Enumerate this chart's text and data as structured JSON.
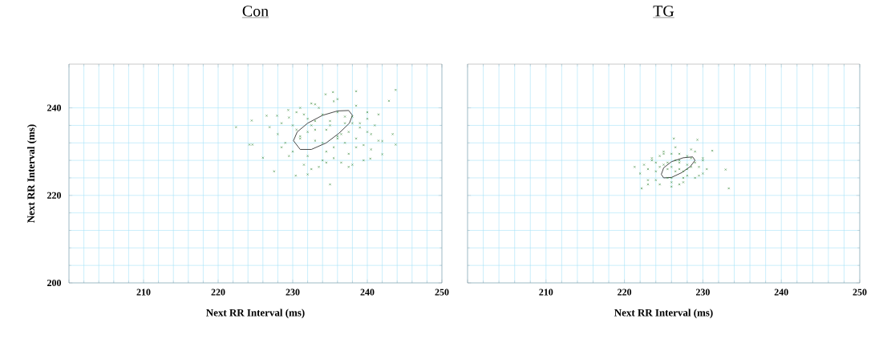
{
  "chart_data": [
    {
      "type": "scatter",
      "title": "Con",
      "xlabel": "Next RR Interval (ms)",
      "ylabel": "Next RR Interval (ms)",
      "xlim": [
        200,
        250
      ],
      "ylim": [
        200,
        250
      ],
      "xticks": [
        {
          "value": 200,
          "label": null
        },
        210,
        220,
        230,
        240,
        250
      ],
      "yticks": [
        200,
        220,
        240
      ],
      "grid": true,
      "marker": "cross",
      "series": [
        {
          "type": "scatter",
          "color": "#3c8c3c",
          "x": [
            222.4,
            224.5,
            226,
            227.5,
            230.4,
            232,
            235,
            243.8,
            242.9,
            243.8,
            243.4,
            238.5,
            235.4,
            234.4,
            240.4,
            242,
            242,
            233,
            229.4,
            227.9,
            226.5,
            224.2,
            224.6,
            226.9,
            228,
            228.5,
            229,
            229.5,
            230,
            230.5,
            231,
            231.5,
            232,
            232.5,
            233,
            233.5,
            234,
            234.5,
            235,
            235.5,
            236,
            236.5,
            237,
            237.5,
            238,
            238.5,
            239,
            239.5,
            240,
            240.5,
            241,
            241.5,
            228.5,
            229.5,
            230.5,
            231.5,
            232.5,
            233.5,
            234.5,
            235.5,
            236.5,
            237.5,
            238.5,
            239.5,
            240.5,
            241.5,
            230,
            231,
            232,
            233,
            234,
            235,
            236,
            237,
            238,
            239,
            240,
            231,
            232.5,
            234,
            235.5,
            237,
            238.5,
            240,
            233,
            234.5,
            236,
            237.5,
            232,
            236,
            238
          ],
          "values": [
            235.6,
            237.1,
            228.6,
            225.5,
            224.5,
            224.8,
            222.5,
            244.1,
            241.6,
            231.6,
            234,
            243.8,
            243.6,
            243.1,
            228.4,
            229.4,
            232.4,
            240.8,
            239.5,
            238.2,
            238.2,
            231.6,
            231.6,
            235.6,
            234,
            236.5,
            232,
            237.8,
            230,
            235,
            233.5,
            238.5,
            229,
            236,
            232.5,
            240,
            228,
            235,
            237,
            231,
            239,
            234,
            236.5,
            229.5,
            238,
            233,
            235.5,
            231.5,
            237.5,
            234,
            236,
            232.5,
            231,
            229,
            239,
            227,
            241,
            226.5,
            230,
            241.5,
            227.5,
            234.5,
            240.5,
            228,
            230.5,
            238.5,
            236,
            233,
            234.5,
            237,
            232,
            236,
            233,
            238,
            236.5,
            236.5,
            234.5,
            240,
            226,
            238.5,
            228.5,
            232,
            231,
            239,
            235,
            227.5,
            242,
            226.5,
            237.5,
            233.5,
            227
          ]
        },
        {
          "type": "line",
          "marker": "none",
          "color": "#333333",
          "x": [
            230.1,
            230.6,
            232,
            234,
            236,
            237.5,
            238
          ],
          "values": [
            232.5,
            234.5,
            236.5,
            238.3,
            239.3,
            239.4,
            238.3
          ]
        },
        {
          "type": "line",
          "marker": "none",
          "color": "#333333",
          "x": [
            230.1,
            231,
            232.5,
            234.5,
            236.2,
            237.6,
            238
          ],
          "values": [
            232.5,
            230.5,
            230.5,
            232,
            234.2,
            236.5,
            238.3
          ]
        }
      ]
    },
    {
      "type": "scatter",
      "title": "TG",
      "xlabel": "Next RR Interval (ms)",
      "xlim": [
        200,
        250
      ],
      "ylim": [
        200,
        250
      ],
      "xticks": [
        {
          "value": 200,
          "label": null
        },
        210,
        220,
        230,
        240,
        250
      ],
      "yticks": [
        200,
        220,
        240
      ],
      "grid": true,
      "marker": "cross",
      "tick_labels": "x",
      "series": [
        {
          "type": "scatter",
          "color": "#3c8c3c",
          "x": [
            226.3,
            229.3,
            221.3,
            232.9,
            233.3,
            222.2,
            231.2,
            222,
            222.5,
            223,
            223.5,
            224,
            224.5,
            225,
            225.5,
            226,
            226.5,
            227,
            227.5,
            228,
            228.5,
            229,
            229.5,
            230,
            230.5,
            223,
            224,
            225,
            226,
            227,
            228,
            229,
            230,
            223.5,
            224.5,
            225.5,
            226.5,
            227.5,
            228.5,
            229.5,
            224,
            225,
            226,
            227,
            228,
            229,
            224.5,
            225.5,
            226.5,
            227.5,
            228.5,
            225,
            226,
            227,
            228,
            223,
            230,
            226,
            227
          ],
          "values": [
            233,
            232.7,
            226.5,
            225.9,
            221.6,
            221.6,
            230.2,
            225,
            227,
            223.5,
            228,
            225.5,
            222.5,
            229.5,
            226,
            224,
            231,
            227.5,
            223,
            229,
            226.5,
            230,
            224.5,
            228,
            226,
            226,
            223.5,
            227,
            222,
            229.5,
            224.5,
            227.5,
            225,
            228.5,
            226.5,
            224,
            228,
            225.5,
            230.5,
            226.5,
            227.5,
            null,
            223,
            226,
            227,
            224,
            229,
            227.5,
            225.5,
            224,
            228.5,
            230,
            226.5,
            222.5,
            226,
            222.5,
            228.5,
            229.5,
            228
          ]
        },
        {
          "type": "line",
          "marker": "none",
          "color": "#333333",
          "x": [
            224.7,
            225,
            226,
            227.5,
            228.7,
            229
          ],
          "values": [
            224.8,
            226.3,
            227.7,
            228.6,
            228.8,
            228
          ]
        },
        {
          "type": "line",
          "marker": "none",
          "color": "#333333",
          "x": [
            224.7,
            225,
            226,
            227.3,
            228.4,
            229
          ],
          "values": [
            224.8,
            224,
            224.1,
            225.2,
            226.6,
            228
          ]
        }
      ]
    }
  ]
}
